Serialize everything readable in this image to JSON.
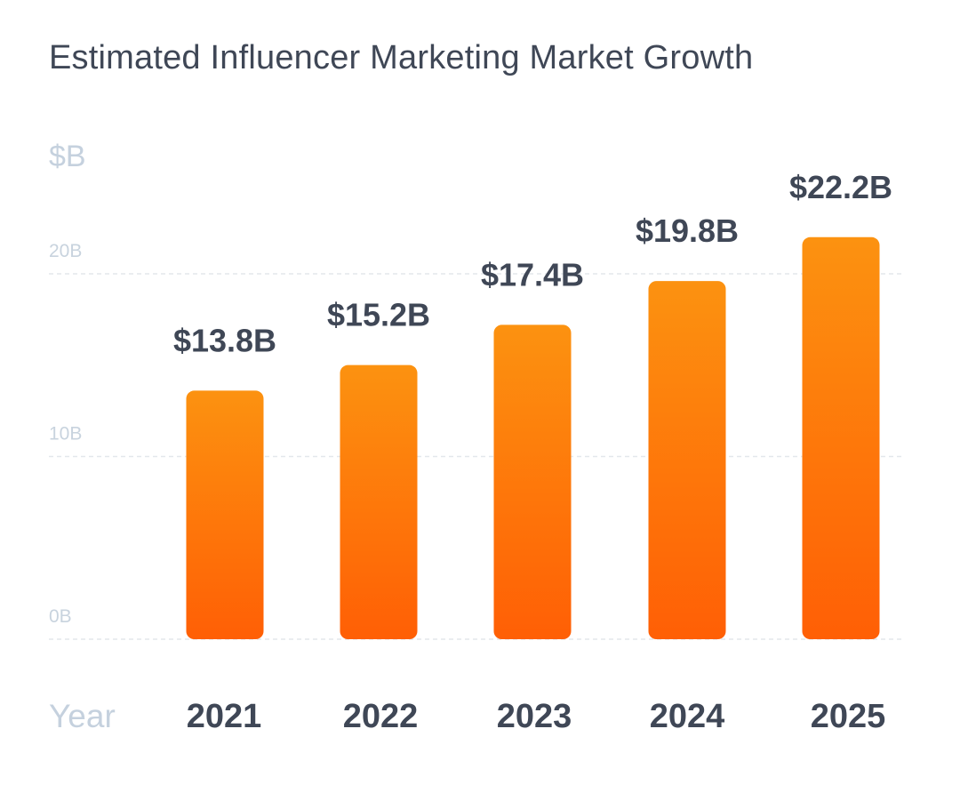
{
  "chart_data": {
    "type": "bar",
    "title": "Estimated Influencer Marketing Market Growth",
    "ylabel": "$B",
    "xlabel": "Year",
    "categories": [
      "2021",
      "2022",
      "2023",
      "2024",
      "2025"
    ],
    "values": [
      13.8,
      15.2,
      17.4,
      19.8,
      22.2
    ],
    "value_labels": [
      "$13.8B",
      "$15.2B",
      "$17.4B",
      "$19.8B",
      "$22.2B"
    ],
    "yticks": [
      0,
      10,
      20
    ],
    "ytick_labels": [
      "0B",
      "10B",
      "20B"
    ],
    "ylim": [
      0,
      22.2
    ],
    "grid": true,
    "colors": {
      "bar_top": "#fc9210",
      "bar_bottom": "#ff5f05",
      "text_dark": "#3f4756",
      "text_light": "#c5d1de",
      "grid": "#e3e7ec"
    }
  }
}
